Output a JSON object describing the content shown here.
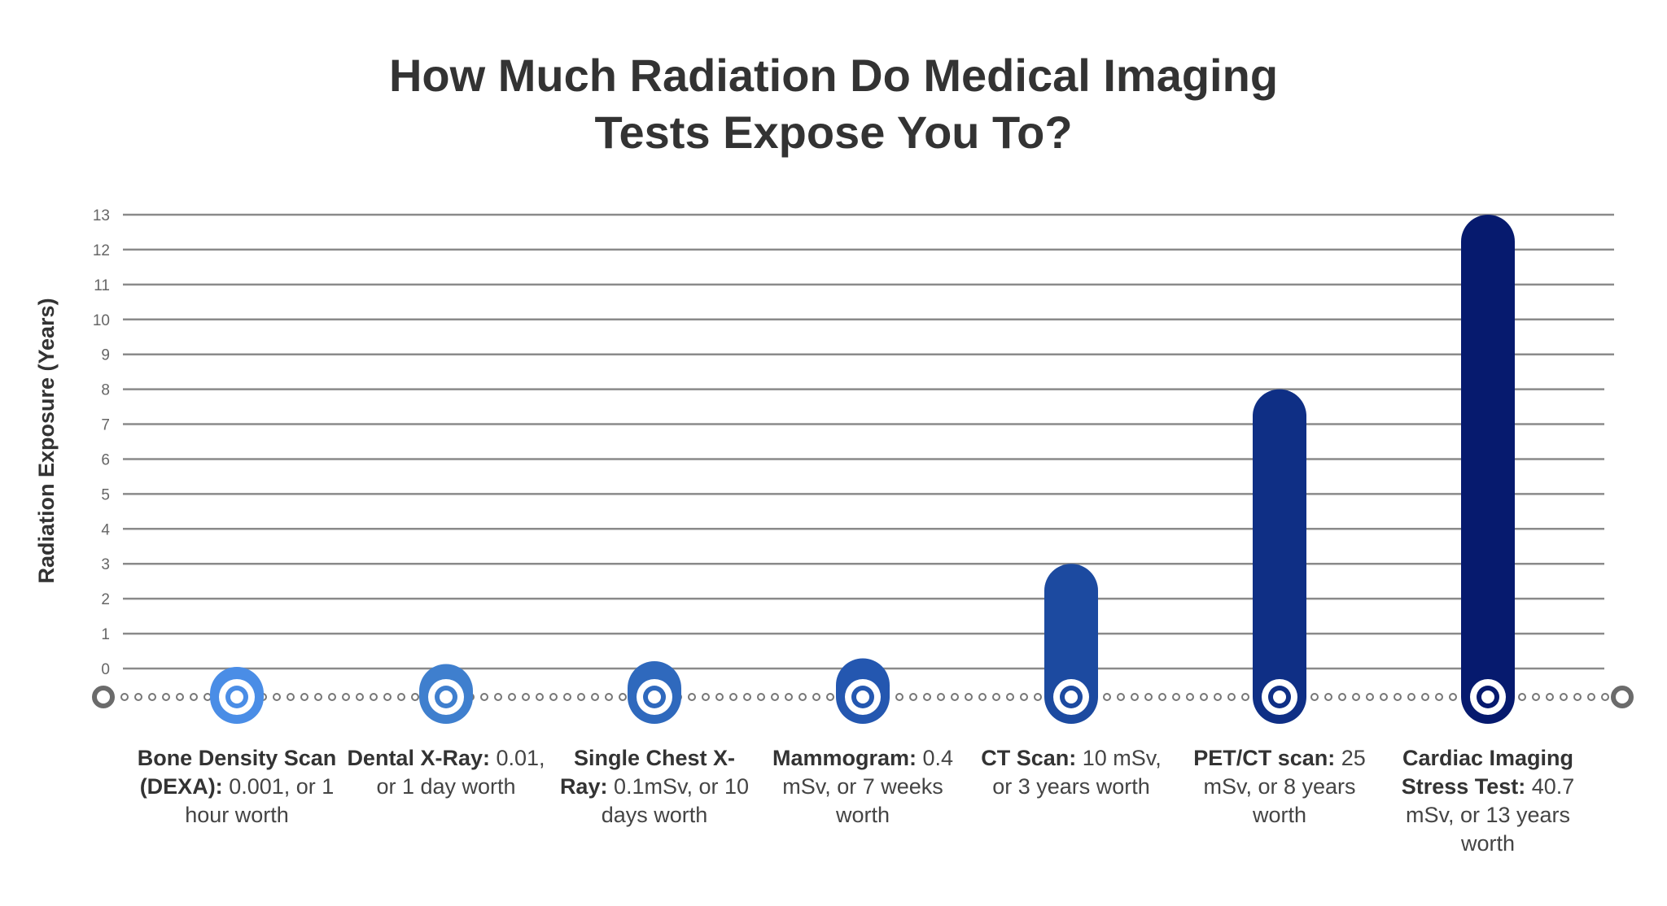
{
  "chart_data": {
    "type": "bar",
    "title_lines": [
      "How Much Radiation Do Medical Imaging",
      "Tests Expose You To?"
    ],
    "ylabel": "Radiation Exposure (Years)",
    "xlabel": "",
    "ylim": [
      0,
      13
    ],
    "yticks": [
      0,
      1,
      2,
      3,
      4,
      5,
      6,
      7,
      8,
      9,
      10,
      11,
      12,
      13
    ],
    "grid": true,
    "categories": [
      {
        "bold": "Bone Density Scan (DEXA):",
        "rest": " 0.001, or 1 hour worth"
      },
      {
        "bold": "Dental X-Ray:",
        "rest": " 0.01, or 1 day worth"
      },
      {
        "bold": "Single Chest X-Ray:",
        "rest": " 0.1mSv, or 10 days worth"
      },
      {
        "bold": "Mammogram:",
        "rest": " 0.4 mSv, or 7 weeks worth"
      },
      {
        "bold": "CT Scan:",
        "rest": " 10 mSv, or 3 years worth"
      },
      {
        "bold": "PET/CT scan:",
        "rest": " 25 mSv, or 8 years worth"
      },
      {
        "bold": "Cardiac Imaging Stress Test:",
        "rest": " 40.7 mSv, or 13 years worth"
      }
    ],
    "values": [
      0.0001,
      0.003,
      0.03,
      0.13,
      3,
      8,
      13
    ],
    "colors": [
      "#4a8de6",
      "#3f7fce",
      "#2f69bd",
      "#2457b0",
      "#1c4aa0",
      "#0f2f85",
      "#061a6e"
    ],
    "gridline_color": "#8a8a8a",
    "axis_marker_color": "#6b6b6b"
  }
}
